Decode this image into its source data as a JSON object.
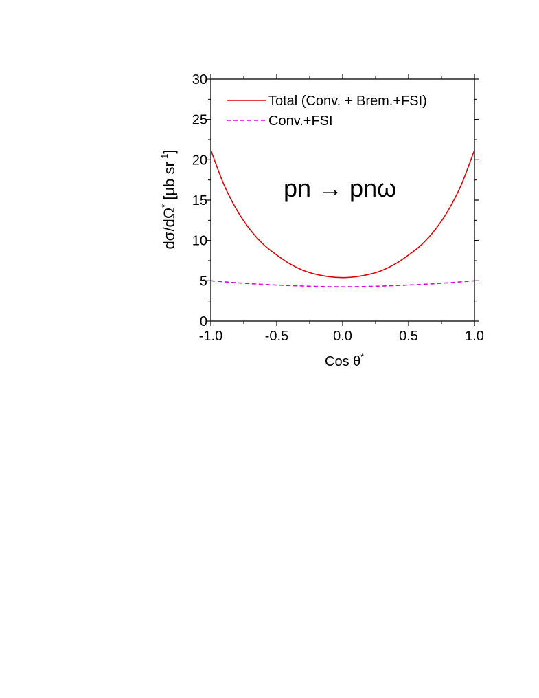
{
  "chart_data": {
    "type": "line",
    "title": "",
    "annotation": "pn → pnω",
    "xlabel": "Cos θ",
    "xlabel_superscript": "*",
    "ylabel_prefix": "dσ/dΩ",
    "ylabel_superscript": "*",
    "ylabel_unit": " [μb sr",
    "ylabel_unit_exp": "-1",
    "ylabel_unit_close": "]",
    "xlim": [
      -1.0,
      1.0
    ],
    "ylim": [
      0,
      30
    ],
    "xticks": [
      "-1.0",
      "-0.5",
      "0.0",
      "0.5",
      "1.0"
    ],
    "yticks": [
      "0",
      "5",
      "10",
      "15",
      "20",
      "25",
      "30"
    ],
    "legend_position": "top-left",
    "grid": false,
    "series": [
      {
        "name": "Total (Conv. + Brem.+FSI)",
        "color": "#e00000",
        "style": "solid",
        "x": [
          -1.0,
          -0.9,
          -0.8,
          -0.7,
          -0.6,
          -0.5,
          -0.4,
          -0.3,
          -0.2,
          -0.1,
          0.0,
          0.1,
          0.2,
          0.3,
          0.4,
          0.5,
          0.6,
          0.7,
          0.8,
          0.9,
          1.0
        ],
        "y": [
          21.2,
          16.9,
          13.7,
          11.3,
          9.5,
          8.2,
          7.1,
          6.3,
          5.8,
          5.5,
          5.4,
          5.5,
          5.8,
          6.3,
          7.1,
          8.2,
          9.5,
          11.3,
          13.7,
          16.9,
          21.2
        ]
      },
      {
        "name": "Conv.+FSI",
        "color": "#e000e0",
        "style": "dashed",
        "x": [
          -1.0,
          -0.8,
          -0.6,
          -0.4,
          -0.2,
          0.0,
          0.2,
          0.4,
          0.6,
          0.8,
          1.0
        ],
        "y": [
          5.0,
          4.75,
          4.55,
          4.4,
          4.3,
          4.25,
          4.3,
          4.4,
          4.55,
          4.75,
          5.0
        ]
      }
    ]
  }
}
